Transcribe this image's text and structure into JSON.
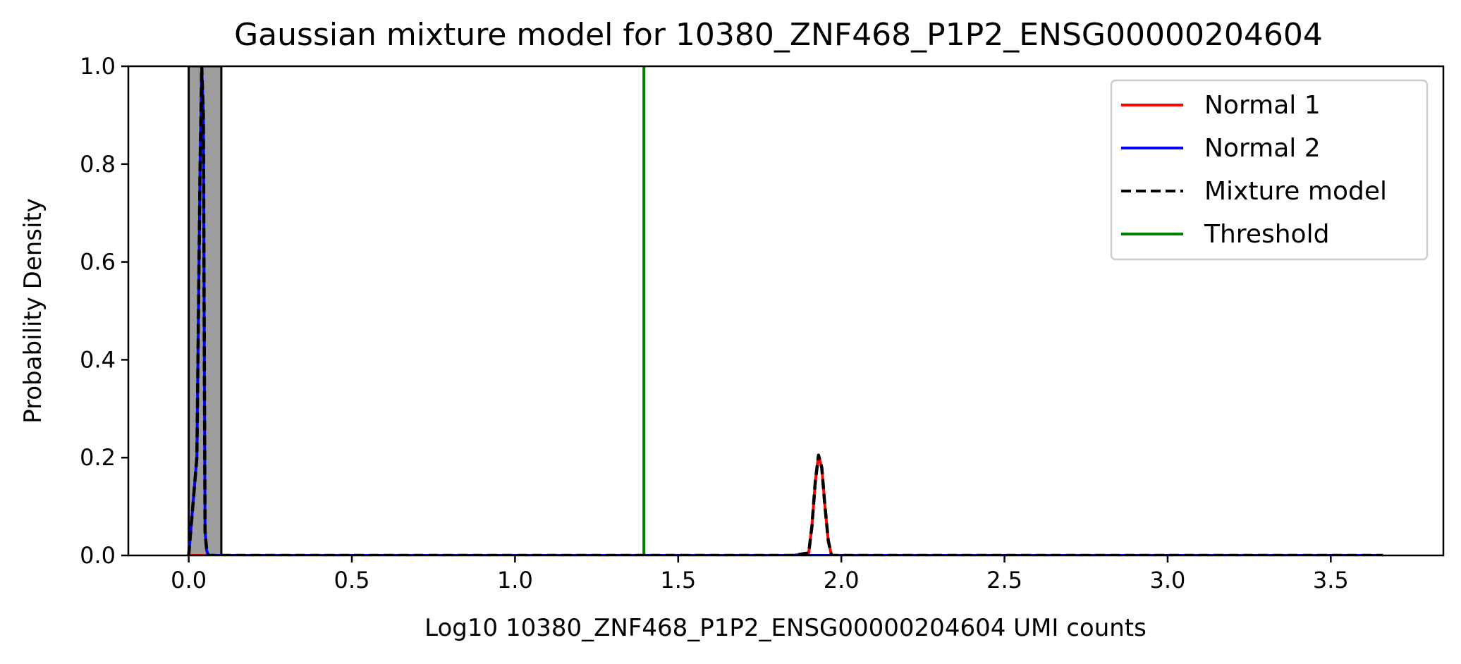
{
  "chart_data": {
    "type": "line",
    "title": "Gaussian mixture model for 10380_ZNF468_P1P2_ENSG00000204604",
    "xlabel": "Log10 10380_ZNF468_P1P2_ENSG00000204604 UMI counts",
    "ylabel": "Probability Density",
    "xlim": [
      -0.185,
      3.845
    ],
    "ylim": [
      0.0,
      1.0
    ],
    "xticks": [
      "0.0",
      "0.5",
      "1.0",
      "1.5",
      "2.0",
      "2.5",
      "3.0",
      "3.5"
    ],
    "xtick_values": [
      0.0,
      0.5,
      1.0,
      1.5,
      2.0,
      2.5,
      3.0,
      3.5
    ],
    "yticks": [
      "0.0",
      "0.2",
      "0.4",
      "0.6",
      "0.8",
      "1.0"
    ],
    "ytick_values": [
      0.0,
      0.2,
      0.4,
      0.6,
      0.8,
      1.0
    ],
    "grid": false,
    "legend_position": "top-right",
    "histogram": {
      "bins": [
        {
          "x0": 0.0,
          "x1": 0.1,
          "height": 1.0
        }
      ],
      "color": "#9e9e9e"
    },
    "threshold": {
      "name": "Threshold",
      "x": 1.395,
      "color": "#008000"
    },
    "series": [
      {
        "name": "Normal 1",
        "color": "#ff0000",
        "style": "solid",
        "x": [
          0.0,
          1.85,
          1.9,
          1.91,
          1.92,
          1.93,
          1.94,
          1.95,
          1.96,
          1.97,
          3.66
        ],
        "y": [
          0.0,
          0.0,
          0.005,
          0.06,
          0.15,
          0.205,
          0.18,
          0.1,
          0.03,
          0.0,
          0.0
        ]
      },
      {
        "name": "Normal 2",
        "color": "#0000ff",
        "style": "solid",
        "x": [
          0.0,
          0.025,
          0.035,
          0.04,
          0.045,
          0.05,
          0.055,
          0.06,
          0.07,
          3.66
        ],
        "y": [
          0.0,
          0.2,
          0.8,
          1.0,
          0.9,
          0.05,
          0.01,
          0.0,
          0.0,
          0.0
        ]
      },
      {
        "name": "Mixture model",
        "color": "#000000",
        "style": "dashed",
        "x": [
          0.0,
          0.025,
          0.035,
          0.04,
          0.045,
          0.05,
          0.055,
          0.06,
          0.07,
          1.85,
          1.9,
          1.91,
          1.92,
          1.93,
          1.94,
          1.95,
          1.96,
          1.97,
          3.66
        ],
        "y": [
          0.0,
          0.2,
          0.8,
          1.0,
          0.9,
          0.05,
          0.01,
          0.0,
          0.0,
          0.0,
          0.005,
          0.06,
          0.15,
          0.205,
          0.18,
          0.1,
          0.03,
          0.0,
          0.0
        ]
      }
    ]
  }
}
